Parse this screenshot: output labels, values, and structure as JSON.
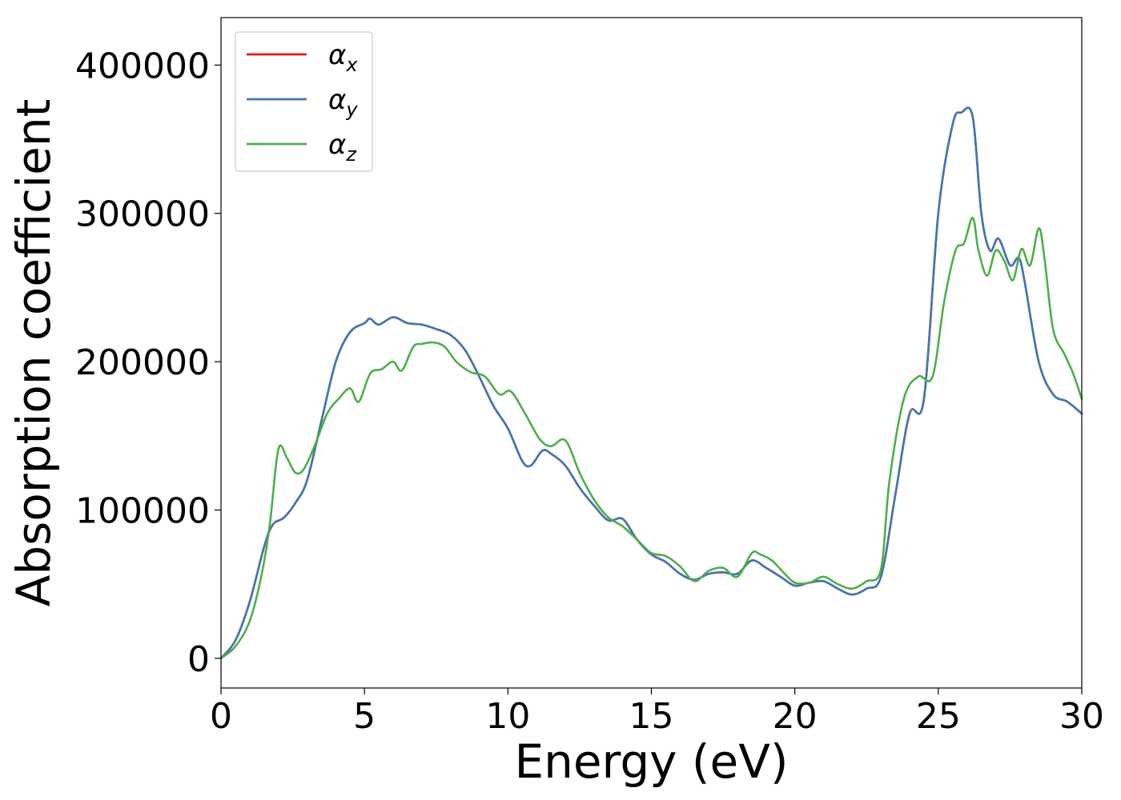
{
  "chart_data": {
    "type": "line",
    "xlabel": "Energy (eV)",
    "ylabel": "Absorption coefficient",
    "xlim": [
      0,
      30
    ],
    "ylim": [
      -20000,
      432000
    ],
    "xticks": [
      "0",
      "5",
      "10",
      "15",
      "20",
      "25",
      "30"
    ],
    "yticks": [
      "0",
      "100000",
      "200000",
      "300000",
      "400000"
    ],
    "grid": false,
    "legend_position": "top-left",
    "series": [
      {
        "name": "α",
        "subscript": "x",
        "color": "#e41a1c",
        "x": [
          0,
          0.5,
          1,
          1.5,
          1.8,
          2.2,
          2.6,
          3,
          3.5,
          4,
          4.5,
          5,
          5.2,
          5.5,
          6,
          6.5,
          7,
          7.5,
          8,
          8.5,
          9,
          9.5,
          10,
          10.5,
          10.8,
          11.2,
          11.5,
          12,
          12.5,
          13,
          13.5,
          14,
          14.5,
          15,
          15.5,
          16,
          16.5,
          17,
          17.5,
          18,
          18.5,
          19,
          19.5,
          20,
          20.5,
          21,
          21.5,
          22,
          22.5,
          23,
          23.5,
          24,
          24.5,
          25,
          25.5,
          25.8,
          26.2,
          26.5,
          26.8,
          27.1,
          27.5,
          27.8,
          28,
          28.5,
          29,
          29.5,
          30
        ],
        "y": [
          0,
          12000,
          38000,
          75000,
          90000,
          95000,
          105000,
          120000,
          160000,
          200000,
          220000,
          226000,
          229000,
          225000,
          230000,
          226000,
          225000,
          222000,
          218000,
          208000,
          190000,
          170000,
          155000,
          133000,
          130000,
          140000,
          138000,
          130000,
          115000,
          103000,
          93000,
          94000,
          80000,
          70000,
          65000,
          57000,
          53000,
          57000,
          58000,
          57000,
          66000,
          61000,
          55000,
          49000,
          51000,
          52000,
          47000,
          43000,
          47000,
          55000,
          110000,
          165000,
          175000,
          300000,
          360000,
          368000,
          365000,
          300000,
          275000,
          283000,
          265000,
          270000,
          255000,
          200000,
          178000,
          173000,
          165000
        ]
      },
      {
        "name": "α",
        "subscript": "y",
        "color": "#3f78b0",
        "x": [
          0,
          0.5,
          1,
          1.5,
          1.8,
          2.2,
          2.6,
          3,
          3.5,
          4,
          4.5,
          5,
          5.2,
          5.5,
          6,
          6.5,
          7,
          7.5,
          8,
          8.5,
          9,
          9.5,
          10,
          10.5,
          10.8,
          11.2,
          11.5,
          12,
          12.5,
          13,
          13.5,
          14,
          14.5,
          15,
          15.5,
          16,
          16.5,
          17,
          17.5,
          18,
          18.5,
          19,
          19.5,
          20,
          20.5,
          21,
          21.5,
          22,
          22.5,
          23,
          23.5,
          24,
          24.5,
          25,
          25.5,
          25.8,
          26.2,
          26.5,
          26.8,
          27.1,
          27.5,
          27.8,
          28,
          28.5,
          29,
          29.5,
          30
        ],
        "y": [
          0,
          12000,
          38000,
          75000,
          90000,
          95000,
          105000,
          120000,
          160000,
          200000,
          220000,
          226000,
          229000,
          225000,
          230000,
          226000,
          225000,
          222000,
          218000,
          208000,
          190000,
          170000,
          155000,
          133000,
          130000,
          140000,
          138000,
          130000,
          115000,
          103000,
          93000,
          94000,
          80000,
          70000,
          65000,
          57000,
          53000,
          57000,
          58000,
          57000,
          66000,
          61000,
          55000,
          49000,
          51000,
          52000,
          47000,
          43000,
          47000,
          55000,
          110000,
          165000,
          175000,
          300000,
          360000,
          368000,
          365000,
          300000,
          275000,
          283000,
          265000,
          270000,
          255000,
          200000,
          178000,
          173000,
          165000
        ]
      },
      {
        "name": "α",
        "subscript": "z",
        "color": "#4daf4a",
        "x": [
          0,
          0.5,
          1,
          1.4,
          1.7,
          2,
          2.3,
          2.6,
          2.9,
          3.3,
          3.7,
          4.1,
          4.5,
          4.8,
          5.2,
          5.6,
          6,
          6.3,
          6.7,
          7,
          7.4,
          7.8,
          8.2,
          8.7,
          9.2,
          9.7,
          10.1,
          10.6,
          11.1,
          11.5,
          12,
          12.5,
          13,
          13.5,
          14,
          14.5,
          15,
          15.5,
          16,
          16.5,
          17,
          17.5,
          18,
          18.5,
          18.8,
          19.2,
          19.6,
          20,
          20.5,
          21,
          21.5,
          22,
          22.5,
          23,
          23.3,
          23.8,
          24.3,
          24.8,
          25.2,
          25.6,
          25.9,
          26.2,
          26.4,
          26.7,
          27,
          27.3,
          27.6,
          27.9,
          28.2,
          28.5,
          28.7,
          29,
          29.4,
          29.7,
          30
        ],
        "y": [
          0,
          8000,
          25000,
          55000,
          90000,
          141000,
          135000,
          125000,
          128000,
          145000,
          165000,
          175000,
          182000,
          173000,
          192000,
          195000,
          200000,
          194000,
          210000,
          212000,
          213000,
          210000,
          200000,
          193000,
          190000,
          178000,
          180000,
          165000,
          148000,
          143000,
          147000,
          125000,
          107000,
          95000,
          89000,
          80000,
          71000,
          69000,
          62000,
          52000,
          59000,
          61000,
          55000,
          71000,
          70000,
          66000,
          58000,
          51000,
          51000,
          55000,
          50000,
          47000,
          52000,
          60000,
          120000,
          175000,
          190000,
          190000,
          240000,
          275000,
          280000,
          297000,
          275000,
          258000,
          275000,
          268000,
          255000,
          276000,
          265000,
          290000,
          270000,
          222000,
          205000,
          192000,
          175000
        ]
      }
    ]
  }
}
